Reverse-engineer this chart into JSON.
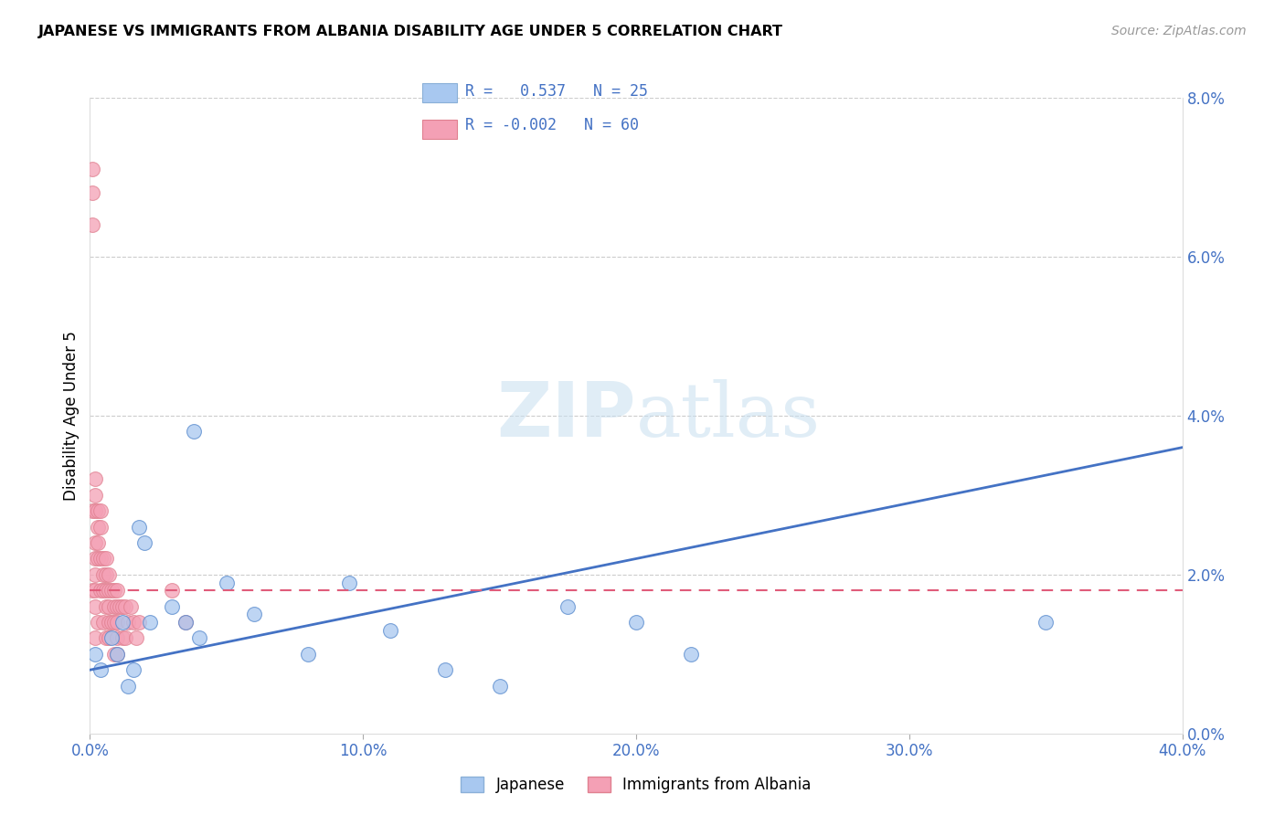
{
  "title": "JAPANESE VS IMMIGRANTS FROM ALBANIA DISABILITY AGE UNDER 5 CORRELATION CHART",
  "source": "Source: ZipAtlas.com",
  "ylabel": "Disability Age Under 5",
  "xlim": [
    0.0,
    0.4
  ],
  "ylim": [
    0.0,
    0.08
  ],
  "legend_japanese": "Japanese",
  "legend_albania": "Immigrants from Albania",
  "R_japanese": "0.537",
  "N_japanese": "25",
  "R_albania": "-0.002",
  "N_albania": "60",
  "color_japanese": "#a8c8f0",
  "color_albania": "#f4a0b5",
  "color_japanese_line": "#4472c4",
  "color_albania_line": "#e05c7a",
  "jp_line_x": [
    0.0,
    0.4
  ],
  "jp_line_y": [
    0.008,
    0.036
  ],
  "al_line_x": [
    0.0,
    0.4
  ],
  "al_line_y": [
    0.018,
    0.018
  ],
  "japanese_x": [
    0.002,
    0.004,
    0.008,
    0.01,
    0.012,
    0.014,
    0.016,
    0.018,
    0.02,
    0.022,
    0.03,
    0.035,
    0.04,
    0.05,
    0.06,
    0.08,
    0.095,
    0.11,
    0.13,
    0.15,
    0.175,
    0.2,
    0.22,
    0.35,
    0.038
  ],
  "japanese_y": [
    0.01,
    0.008,
    0.012,
    0.01,
    0.014,
    0.006,
    0.008,
    0.026,
    0.024,
    0.014,
    0.016,
    0.014,
    0.012,
    0.019,
    0.015,
    0.01,
    0.019,
    0.013,
    0.008,
    0.006,
    0.016,
    0.014,
    0.01,
    0.014,
    0.038
  ],
  "albania_x": [
    0.001,
    0.001,
    0.001,
    0.001,
    0.001,
    0.002,
    0.002,
    0.002,
    0.002,
    0.002,
    0.002,
    0.002,
    0.002,
    0.002,
    0.003,
    0.003,
    0.003,
    0.003,
    0.003,
    0.004,
    0.004,
    0.004,
    0.004,
    0.005,
    0.005,
    0.005,
    0.005,
    0.006,
    0.006,
    0.006,
    0.006,
    0.006,
    0.007,
    0.007,
    0.007,
    0.007,
    0.007,
    0.008,
    0.008,
    0.009,
    0.009,
    0.009,
    0.009,
    0.01,
    0.01,
    0.01,
    0.01,
    0.01,
    0.011,
    0.012,
    0.012,
    0.013,
    0.013,
    0.014,
    0.015,
    0.016,
    0.017,
    0.018,
    0.03,
    0.035
  ],
  "albania_y": [
    0.071,
    0.068,
    0.064,
    0.028,
    0.018,
    0.032,
    0.03,
    0.028,
    0.024,
    0.022,
    0.02,
    0.018,
    0.016,
    0.012,
    0.028,
    0.026,
    0.024,
    0.022,
    0.014,
    0.028,
    0.026,
    0.022,
    0.018,
    0.022,
    0.02,
    0.018,
    0.014,
    0.022,
    0.02,
    0.018,
    0.016,
    0.012,
    0.02,
    0.018,
    0.016,
    0.014,
    0.012,
    0.018,
    0.014,
    0.018,
    0.016,
    0.014,
    0.01,
    0.018,
    0.016,
    0.014,
    0.012,
    0.01,
    0.016,
    0.016,
    0.012,
    0.016,
    0.012,
    0.014,
    0.016,
    0.014,
    0.012,
    0.014,
    0.018,
    0.014
  ]
}
